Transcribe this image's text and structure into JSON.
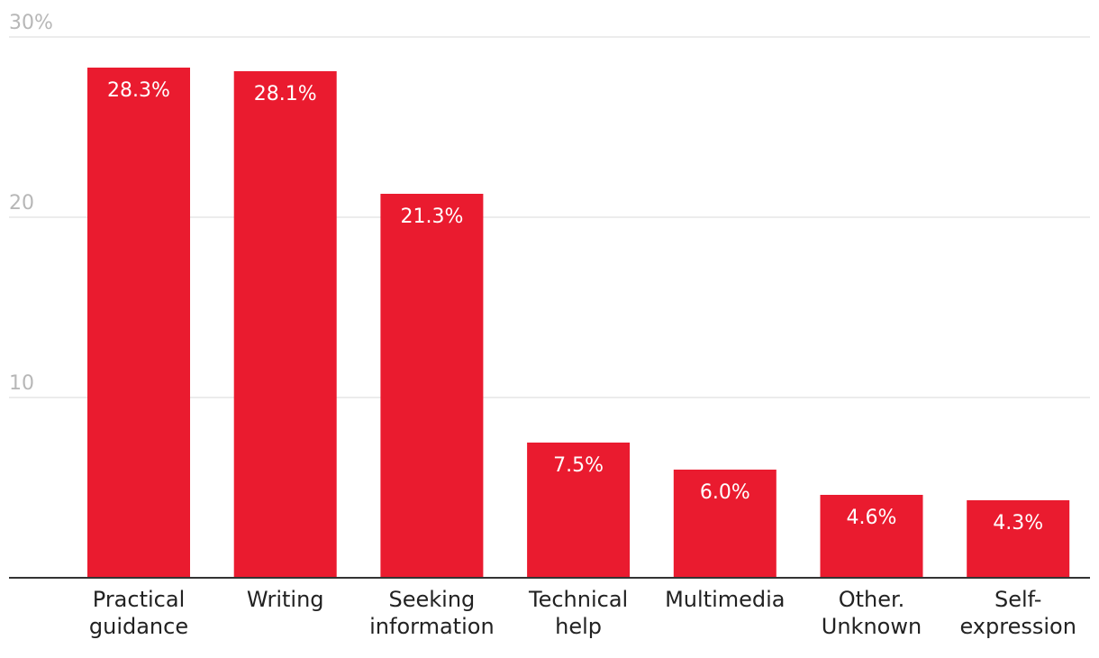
{
  "chart_data": {
    "type": "bar",
    "title": "",
    "xlabel": "",
    "ylabel": "",
    "ylim": [
      0,
      30
    ],
    "y_ticks": [
      {
        "value": 10,
        "label": "10"
      },
      {
        "value": 20,
        "label": "20"
      },
      {
        "value": 30,
        "label": "30%"
      }
    ],
    "grid": true,
    "legend": "none",
    "categories": [
      [
        "Practical",
        "guidance"
      ],
      [
        "Writing"
      ],
      [
        "Seeking",
        "information"
      ],
      [
        "Technical",
        "help"
      ],
      [
        "Multimedia"
      ],
      [
        "Other.",
        "Unknown"
      ],
      [
        "Self-",
        "expression"
      ]
    ],
    "values": [
      28.3,
      28.1,
      21.3,
      7.5,
      6.0,
      4.6,
      4.3
    ],
    "value_labels": [
      "28.3%",
      "28.1%",
      "21.3%",
      "7.5%",
      "6.0%",
      "4.6%",
      "4.3%"
    ],
    "colors": {
      "bar": "#ea1b2f",
      "grid": "#e6e6e6",
      "axis": "#333333",
      "tick_text": "#b7b7b7",
      "value_text": "#ffffff",
      "category_text": "#222222"
    }
  }
}
